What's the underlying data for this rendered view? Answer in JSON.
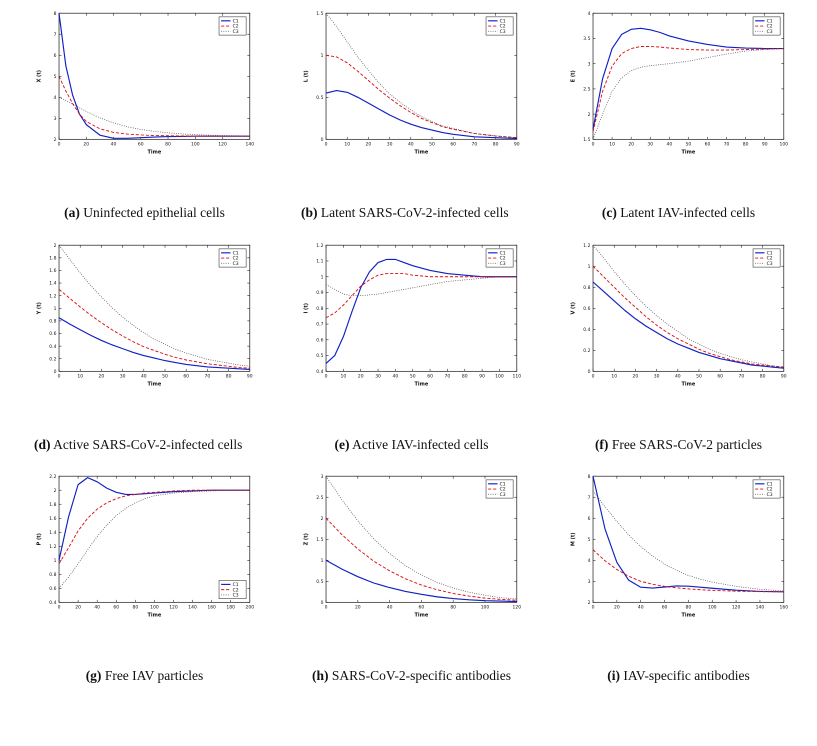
{
  "figure": {
    "legend_labels": [
      "C1",
      "C2",
      "C3"
    ],
    "colors": {
      "c1": "#0f1fc4",
      "c2": "#dd1111",
      "c3": "#3a3a3a"
    }
  },
  "panels": [
    {
      "label": "(a)",
      "caption": "Uninfected epithelial cells"
    },
    {
      "label": "(b)",
      "caption": "Latent SARS-CoV-2-infected cells"
    },
    {
      "label": "(c)",
      "caption": "Latent IAV-infected cells"
    },
    {
      "label": "(d)",
      "caption": "Active SARS-CoV-2-infected cells"
    },
    {
      "label": "(e)",
      "caption": "Active IAV-infected cells"
    },
    {
      "label": "(f)",
      "caption": "Free SARS-CoV-2 particles"
    },
    {
      "label": "(g)",
      "caption": "Free IAV particles"
    },
    {
      "label": "(h)",
      "caption": "SARS-CoV-2-specific antibodies"
    },
    {
      "label": "(i)",
      "caption": "IAV-specific antibodies"
    }
  ],
  "chart_data": [
    {
      "type": "line",
      "ylabel": "X (t)",
      "xlabel": "Time",
      "xlim": [
        0,
        140
      ],
      "ylim": [
        2,
        8
      ],
      "xtick_step": 20,
      "ytick_step": 1,
      "legend": [
        "C1",
        "C2",
        "C3"
      ],
      "legend_pos": "top-right",
      "x": [
        0,
        5,
        10,
        15,
        20,
        30,
        40,
        50,
        60,
        70,
        80,
        90,
        100,
        110,
        120,
        130,
        140
      ],
      "series": [
        {
          "name": "C1",
          "values": [
            8,
            5.5,
            4.1,
            3.2,
            2.7,
            2.2,
            2.05,
            2.05,
            2.08,
            2.11,
            2.13,
            2.14,
            2.15,
            2.15,
            2.15,
            2.15,
            2.15
          ]
        },
        {
          "name": "C2",
          "values": [
            5,
            4.3,
            3.7,
            3.2,
            2.85,
            2.5,
            2.33,
            2.25,
            2.21,
            2.18,
            2.17,
            2.16,
            2.16,
            2.15,
            2.15,
            2.15,
            2.15
          ]
        },
        {
          "name": "C3",
          "values": [
            4,
            3.85,
            3.68,
            3.5,
            3.33,
            3.02,
            2.78,
            2.6,
            2.47,
            2.38,
            2.31,
            2.26,
            2.22,
            2.2,
            2.18,
            2.17,
            2.16
          ]
        }
      ]
    },
    {
      "type": "line",
      "ylabel": "L (t)",
      "xlabel": "Time",
      "xlim": [
        0,
        90
      ],
      "ylim": [
        0,
        1.5
      ],
      "xtick_step": 10,
      "ytick_step": 0.5,
      "legend": [
        "C1",
        "C2",
        "C3"
      ],
      "legend_pos": "top-right",
      "x": [
        0,
        5,
        10,
        15,
        20,
        25,
        30,
        35,
        40,
        45,
        50,
        55,
        60,
        70,
        80,
        90
      ],
      "series": [
        {
          "name": "C1",
          "values": [
            0.55,
            0.58,
            0.56,
            0.5,
            0.43,
            0.36,
            0.29,
            0.23,
            0.18,
            0.14,
            0.11,
            0.08,
            0.06,
            0.03,
            0.02,
            0.01
          ]
        },
        {
          "name": "C2",
          "values": [
            1.0,
            0.98,
            0.91,
            0.81,
            0.7,
            0.59,
            0.49,
            0.4,
            0.32,
            0.25,
            0.2,
            0.15,
            0.12,
            0.07,
            0.04,
            0.02
          ]
        },
        {
          "name": "C3",
          "values": [
            1.5,
            1.34,
            1.16,
            0.98,
            0.82,
            0.67,
            0.54,
            0.44,
            0.35,
            0.27,
            0.21,
            0.16,
            0.13,
            0.07,
            0.04,
            0.02
          ]
        }
      ]
    },
    {
      "type": "line",
      "ylabel": "E (t)",
      "xlabel": "Time",
      "xlim": [
        0,
        100
      ],
      "ylim": [
        1.5,
        4
      ],
      "xtick_step": 10,
      "ytick_step": 0.5,
      "legend": [
        "C1",
        "C2",
        "C3"
      ],
      "legend_pos": "top-right",
      "x": [
        0,
        5,
        10,
        15,
        20,
        25,
        30,
        35,
        40,
        50,
        60,
        70,
        80,
        90,
        100
      ],
      "series": [
        {
          "name": "C1",
          "values": [
            1.7,
            2.7,
            3.3,
            3.58,
            3.68,
            3.7,
            3.67,
            3.62,
            3.55,
            3.45,
            3.38,
            3.33,
            3.31,
            3.3,
            3.3
          ]
        },
        {
          "name": "C2",
          "values": [
            1.65,
            2.45,
            2.95,
            3.2,
            3.3,
            3.34,
            3.34,
            3.33,
            3.31,
            3.28,
            3.27,
            3.27,
            3.28,
            3.29,
            3.3
          ]
        },
        {
          "name": "C3",
          "values": [
            1.5,
            2.0,
            2.45,
            2.72,
            2.86,
            2.93,
            2.96,
            2.98,
            3.0,
            3.05,
            3.12,
            3.19,
            3.25,
            3.28,
            3.3
          ]
        }
      ]
    },
    {
      "type": "line",
      "ylabel": "Y (t)",
      "xlabel": "Time",
      "xlim": [
        0,
        90
      ],
      "ylim": [
        0,
        2
      ],
      "xtick_step": 10,
      "ytick_step": 0.2,
      "legend": [
        "C1",
        "C2",
        "C3"
      ],
      "legend_pos": "top-right",
      "x": [
        0,
        5,
        10,
        15,
        20,
        25,
        30,
        35,
        40,
        45,
        50,
        55,
        60,
        65,
        70,
        75,
        80,
        85,
        90
      ],
      "series": [
        {
          "name": "C1",
          "values": [
            0.85,
            0.75,
            0.66,
            0.57,
            0.49,
            0.42,
            0.36,
            0.3,
            0.25,
            0.21,
            0.17,
            0.14,
            0.11,
            0.09,
            0.07,
            0.06,
            0.05,
            0.04,
            0.03
          ]
        },
        {
          "name": "C2",
          "values": [
            1.3,
            1.16,
            1.02,
            0.89,
            0.77,
            0.66,
            0.56,
            0.47,
            0.39,
            0.33,
            0.27,
            0.22,
            0.18,
            0.15,
            0.12,
            0.1,
            0.08,
            0.06,
            0.05
          ]
        },
        {
          "name": "C3",
          "values": [
            2.0,
            1.78,
            1.56,
            1.36,
            1.18,
            1.01,
            0.86,
            0.73,
            0.61,
            0.51,
            0.43,
            0.35,
            0.29,
            0.24,
            0.19,
            0.16,
            0.13,
            0.1,
            0.08
          ]
        }
      ]
    },
    {
      "type": "line",
      "ylabel": "I (t)",
      "xlabel": "Time",
      "xlim": [
        0,
        110
      ],
      "ylim": [
        0.4,
        1.2
      ],
      "xtick_step": 10,
      "ytick_step": 0.1,
      "legend": [
        "C1",
        "C2",
        "C3"
      ],
      "legend_pos": "top-right",
      "x": [
        0,
        5,
        10,
        15,
        20,
        25,
        30,
        35,
        40,
        45,
        50,
        60,
        70,
        80,
        90,
        100,
        110
      ],
      "series": [
        {
          "name": "C1",
          "values": [
            0.45,
            0.5,
            0.62,
            0.78,
            0.93,
            1.03,
            1.09,
            1.11,
            1.11,
            1.09,
            1.07,
            1.04,
            1.02,
            1.01,
            1.0,
            1.0,
            1.0
          ]
        },
        {
          "name": "C2",
          "values": [
            0.74,
            0.77,
            0.82,
            0.88,
            0.94,
            0.98,
            1.01,
            1.02,
            1.02,
            1.02,
            1.01,
            1.0,
            1.0,
            1.0,
            1.0,
            1.0,
            1.0
          ]
        },
        {
          "name": "C3",
          "values": [
            0.95,
            0.92,
            0.89,
            0.88,
            0.88,
            0.885,
            0.89,
            0.9,
            0.91,
            0.92,
            0.93,
            0.95,
            0.97,
            0.98,
            0.99,
            1.0,
            1.0
          ]
        }
      ]
    },
    {
      "type": "line",
      "ylabel": "V (t)",
      "xlabel": "Time",
      "xlim": [
        0,
        90
      ],
      "ylim": [
        0,
        1.2
      ],
      "xtick_step": 10,
      "ytick_step": 0.2,
      "legend": [
        "C1",
        "C2",
        "C3"
      ],
      "legend_pos": "top-right",
      "x": [
        0,
        5,
        10,
        15,
        20,
        25,
        30,
        35,
        40,
        45,
        50,
        55,
        60,
        65,
        70,
        75,
        80,
        85,
        90
      ],
      "series": [
        {
          "name": "C1",
          "values": [
            0.85,
            0.76,
            0.67,
            0.58,
            0.5,
            0.43,
            0.37,
            0.31,
            0.26,
            0.22,
            0.18,
            0.15,
            0.12,
            0.1,
            0.08,
            0.06,
            0.05,
            0.04,
            0.03
          ]
        },
        {
          "name": "C2",
          "values": [
            1.0,
            0.9,
            0.8,
            0.7,
            0.61,
            0.52,
            0.44,
            0.37,
            0.31,
            0.26,
            0.21,
            0.17,
            0.14,
            0.11,
            0.09,
            0.07,
            0.06,
            0.05,
            0.04
          ]
        },
        {
          "name": "C3",
          "values": [
            1.2,
            1.08,
            0.95,
            0.83,
            0.72,
            0.62,
            0.53,
            0.45,
            0.38,
            0.31,
            0.26,
            0.21,
            0.17,
            0.14,
            0.11,
            0.09,
            0.07,
            0.05,
            0.04
          ]
        }
      ]
    },
    {
      "type": "line",
      "ylabel": "P (t)",
      "xlabel": "Time",
      "xlim": [
        0,
        200
      ],
      "ylim": [
        0.4,
        2.2
      ],
      "xtick_step": 20,
      "ytick_step": 0.2,
      "legend": [
        "C1",
        "C2",
        "C3"
      ],
      "legend_pos": "bottom-right",
      "x": [
        0,
        10,
        20,
        30,
        40,
        50,
        60,
        70,
        80,
        90,
        100,
        120,
        140,
        160,
        180,
        200
      ],
      "series": [
        {
          "name": "C1",
          "values": [
            1.0,
            1.62,
            2.08,
            2.18,
            2.12,
            2.03,
            1.97,
            1.94,
            1.94,
            1.95,
            1.96,
            1.98,
            1.99,
            2.0,
            2.0,
            2.0
          ]
        },
        {
          "name": "C2",
          "values": [
            0.95,
            1.18,
            1.42,
            1.6,
            1.73,
            1.82,
            1.88,
            1.92,
            1.94,
            1.96,
            1.97,
            1.99,
            2.0,
            2.0,
            2.0,
            2.0
          ]
        },
        {
          "name": "C3",
          "values": [
            0.6,
            0.76,
            0.95,
            1.15,
            1.34,
            1.5,
            1.64,
            1.74,
            1.82,
            1.88,
            1.92,
            1.96,
            1.98,
            1.99,
            2.0,
            2.0
          ]
        }
      ]
    },
    {
      "type": "line",
      "ylabel": "Z (t)",
      "xlabel": "Time",
      "xlim": [
        0,
        120
      ],
      "ylim": [
        0,
        3
      ],
      "xtick_step": 20,
      "ytick_step": 0.5,
      "legend": [
        "C1",
        "C2",
        "C3"
      ],
      "legend_pos": "top-right",
      "x": [
        0,
        10,
        20,
        30,
        40,
        50,
        60,
        70,
        80,
        90,
        100,
        110,
        120
      ],
      "series": [
        {
          "name": "C1",
          "values": [
            1.0,
            0.79,
            0.61,
            0.46,
            0.35,
            0.26,
            0.19,
            0.13,
            0.09,
            0.06,
            0.04,
            0.03,
            0.02
          ]
        },
        {
          "name": "C2",
          "values": [
            2.0,
            1.61,
            1.27,
            0.98,
            0.75,
            0.56,
            0.41,
            0.3,
            0.21,
            0.15,
            0.1,
            0.07,
            0.05
          ]
        },
        {
          "name": "C3",
          "values": [
            3.0,
            2.44,
            1.94,
            1.51,
            1.16,
            0.87,
            0.65,
            0.47,
            0.34,
            0.24,
            0.17,
            0.11,
            0.08
          ]
        }
      ]
    },
    {
      "type": "line",
      "ylabel": "M (t)",
      "xlabel": "Time",
      "xlim": [
        0,
        160
      ],
      "ylim": [
        2,
        8
      ],
      "xtick_step": 20,
      "ytick_step": 1,
      "legend": [
        "C1",
        "C2",
        "C3"
      ],
      "legend_pos": "top-right",
      "x": [
        0,
        10,
        20,
        30,
        40,
        50,
        60,
        70,
        80,
        90,
        100,
        120,
        140,
        160
      ],
      "series": [
        {
          "name": "C1",
          "values": [
            8.0,
            5.5,
            3.9,
            3.05,
            2.72,
            2.68,
            2.73,
            2.78,
            2.77,
            2.72,
            2.67,
            2.58,
            2.52,
            2.5
          ]
        },
        {
          "name": "C2",
          "values": [
            4.5,
            3.98,
            3.56,
            3.24,
            3.0,
            2.86,
            2.76,
            2.69,
            2.64,
            2.6,
            2.57,
            2.53,
            2.51,
            2.5
          ]
        },
        {
          "name": "C3",
          "values": [
            7.3,
            6.55,
            5.85,
            5.2,
            4.65,
            4.2,
            3.82,
            3.52,
            3.28,
            3.1,
            2.96,
            2.76,
            2.62,
            2.54
          ]
        }
      ]
    }
  ]
}
